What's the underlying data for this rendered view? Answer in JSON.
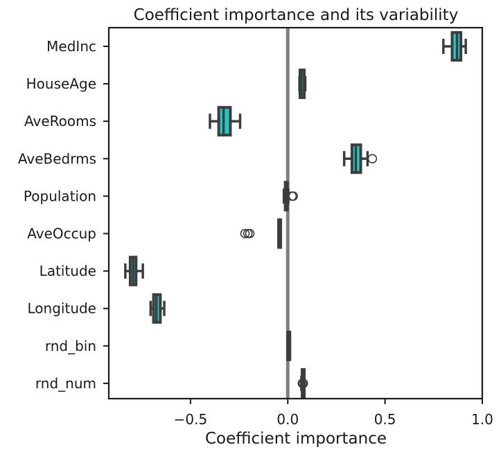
{
  "chart_data": {
    "type": "box",
    "orientation": "horizontal",
    "title": "Coefficient importance and its variability",
    "xlabel": "Coefficient importance",
    "ylabel": "",
    "xlim": [
      -0.92,
      1.0
    ],
    "xticks": [
      -0.5,
      0.0,
      0.5,
      1.0
    ],
    "xtick_labels": [
      "−0.5",
      "0.0",
      "0.5",
      "1.0"
    ],
    "reference_line": 0.0,
    "grid": false,
    "colors": {
      "box_fill": "#25c8c8",
      "box_edge": "#3d3d3d",
      "reference_line": "#808080",
      "axis": "#1a1a1a"
    },
    "categories": [
      "MedInc",
      "HouseAge",
      "AveRooms",
      "AveBedrms",
      "Population",
      "AveOccup",
      "Latitude",
      "Longitude",
      "rnd_bin",
      "rnd_num"
    ],
    "boxes": [
      {
        "label": "MedInc",
        "whisker_low": 0.8,
        "q1": 0.845,
        "median": 0.87,
        "q3": 0.89,
        "whisker_high": 0.915,
        "outliers": []
      },
      {
        "label": "HouseAge",
        "whisker_low": 0.06,
        "q1": 0.063,
        "median": 0.07,
        "q3": 0.085,
        "whisker_high": 0.09,
        "outliers": []
      },
      {
        "label": "AveRooms",
        "whisker_low": -0.4,
        "q1": -0.355,
        "median": -0.33,
        "q3": -0.295,
        "whisker_high": -0.245,
        "outliers": []
      },
      {
        "label": "AveBedrms",
        "whisker_low": 0.29,
        "q1": 0.33,
        "median": 0.35,
        "q3": 0.375,
        "whisker_high": 0.41,
        "outliers": [
          0.435
        ]
      },
      {
        "label": "Population",
        "whisker_low": -0.02,
        "q1": -0.013,
        "median": -0.008,
        "q3": -0.003,
        "whisker_high": 0.003,
        "outliers": [
          0.022,
          0.028
        ]
      },
      {
        "label": "AveOccup",
        "whisker_low": -0.048,
        "q1": -0.047,
        "median": -0.046,
        "q3": -0.045,
        "whisker_high": -0.044,
        "outliers": [
          -0.22,
          -0.205,
          -0.195
        ]
      },
      {
        "label": "Latitude",
        "whisker_low": -0.835,
        "q1": -0.81,
        "median": -0.795,
        "q3": -0.78,
        "whisker_high": -0.745,
        "outliers": []
      },
      {
        "label": "Longitude",
        "whisker_low": -0.705,
        "q1": -0.69,
        "median": -0.675,
        "q3": -0.655,
        "whisker_high": -0.635,
        "outliers": []
      },
      {
        "label": "rnd_bin",
        "whisker_low": -0.001,
        "q1": 0.0,
        "median": 0.0,
        "q3": 0.001,
        "whisker_high": 0.002,
        "outliers": []
      },
      {
        "label": "rnd_num",
        "whisker_low": 0.07,
        "q1": 0.074,
        "median": 0.076,
        "q3": 0.079,
        "whisker_high": 0.081,
        "outliers": [
          0.075,
          0.08
        ]
      }
    ]
  }
}
